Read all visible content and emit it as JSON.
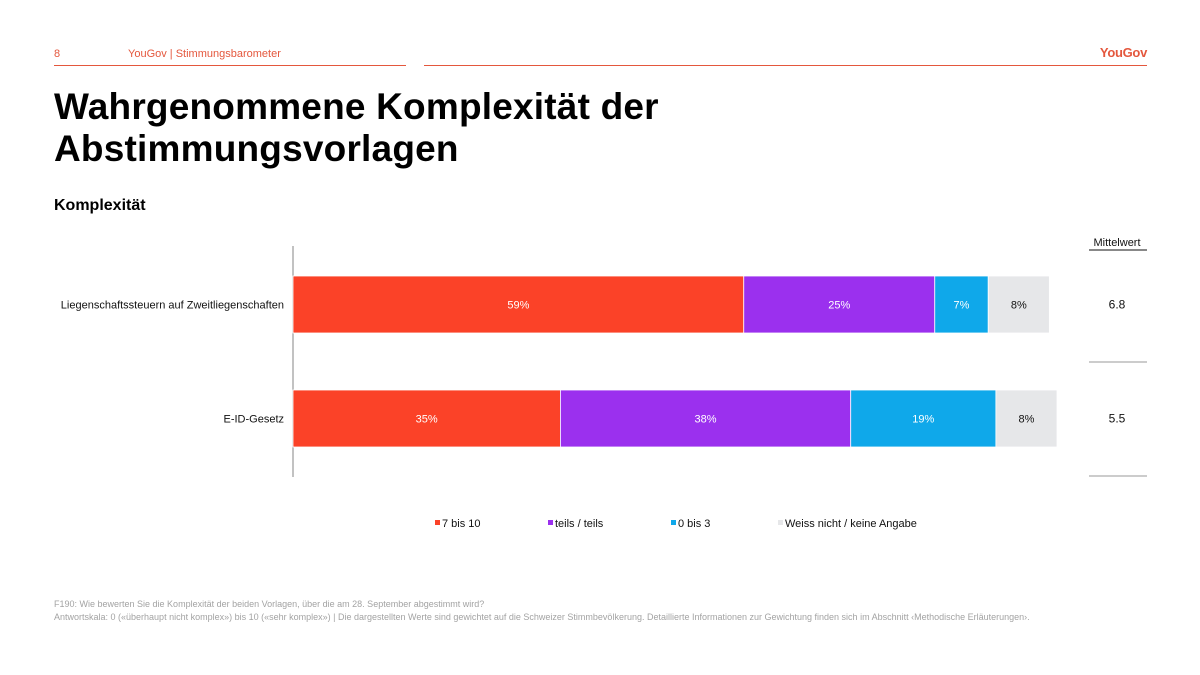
{
  "header": {
    "page_number": "8",
    "breadcrumb": "YouGov | Stimmungsbarometer",
    "logo_text": "YouGov",
    "accent_color": "#e4573d"
  },
  "title_line1": "Wahrgenommene Komplexität der",
  "title_line2": "Abstimmungsvorlagen",
  "subtitle": "Komplexität",
  "chart_data": {
    "type": "bar",
    "orientation": "horizontal-stacked-100",
    "categories": [
      "Liegenschaftssteuern auf Zweitliegenschaften",
      "E-ID-Gesetz"
    ],
    "series": [
      {
        "name": "7 bis 10",
        "color": "#fb4228",
        "values": [
          59,
          35
        ],
        "labels": [
          "59%",
          "35%"
        ],
        "label_color": "#ffffff"
      },
      {
        "name": "teils / teils",
        "color": "#9b30ee",
        "values": [
          25,
          38
        ],
        "labels": [
          "25%",
          "38%"
        ],
        "label_color": "#ffffff"
      },
      {
        "name": "0 bis 3",
        "color": "#0fa8ea",
        "values": [
          7,
          19
        ],
        "labels": [
          "7%",
          "19%"
        ],
        "label_color": "#ffffff"
      },
      {
        "name": "Weiss nicht / keine Angabe",
        "color": "#e6e7e9",
        "values": [
          8,
          8
        ],
        "labels": [
          "8%",
          "8%"
        ],
        "label_color": "#111111"
      }
    ],
    "mean_header": "Mittelwert",
    "means": [
      "6.8",
      "5.5"
    ],
    "legend_position": "bottom",
    "grid": false
  },
  "footnote_line1": "F190: Wie bewerten Sie die Komplexität der beiden Vorlagen, über die am 28. September abgestimmt wird?",
  "footnote_line2": "Antwortskala: 0 («überhaupt nicht komplex») bis 10 («sehr komplex») | Die dargestellten Werte sind gewichtet auf die Schweizer Stimmbevölkerung. Detaillierte Informationen zur Gewichtung finden sich im Abschnitt ‹Methodische Erläuterungen›."
}
